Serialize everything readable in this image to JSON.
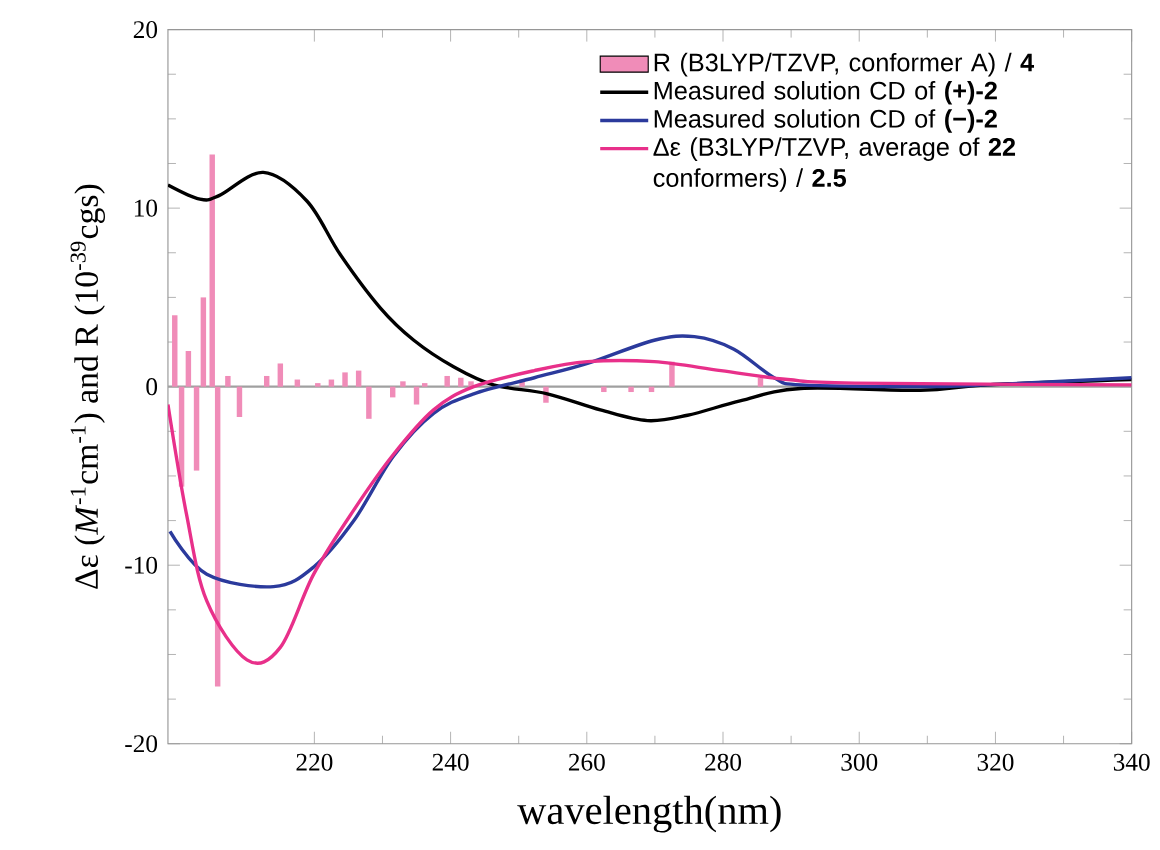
{
  "chart_data": {
    "type": "line",
    "xlabel": "wavelength(nm)",
    "ylabel": "Δε (*M*$^{-1}$cm$^{-1}$) and R (10$^{-39}$cgs)",
    "xlim": [
      198.5,
      340
    ],
    "xticks": [
      220,
      240,
      260,
      280,
      300,
      320,
      340
    ],
    "ylim": [
      -20,
      20
    ],
    "yticks": [
      -20,
      -10,
      0,
      10,
      20
    ],
    "legend": "top right",
    "grid": false,
    "ref_lines": [
      {
        "axis": "y",
        "value": 0,
        "color": "#a0a0a0"
      }
    ],
    "series": [
      {
        "name": "Measured solution CD of **(+)-2**",
        "color": "#000000",
        "x": [
          198.5,
          203.2,
          206,
          212.5,
          218.9,
          223.8,
          229.7,
          234.6,
          240.5,
          246.3,
          254.2,
          262,
          268.9,
          274.8,
          282.5,
          291.4,
          309,
          318.8,
          340
        ],
        "values": [
          11.3,
          10.5,
          10.7,
          12.0,
          10.4,
          7.4,
          4.4,
          2.6,
          1.1,
          0.1,
          -0.4,
          -1.3,
          -1.9,
          -1.6,
          -0.8,
          -0.1,
          -0.2,
          0.1,
          0.4
        ]
      },
      {
        "name": "Measured solution CD of **(−)-2**",
        "color": "#2b3a9c",
        "x": [
          198.8,
          204.2,
          214,
          219.9,
          225.8,
          231.6,
          237.5,
          243.4,
          252.3,
          260.1,
          269.9,
          275.8,
          281.6,
          287.5,
          291.5,
          308.5,
          318.5,
          340
        ],
        "values": [
          -8.1,
          -10.5,
          -11.2,
          -10.1,
          -7.5,
          -3.9,
          -1.5,
          -0.4,
          0.5,
          1.3,
          2.6,
          2.8,
          2.1,
          0.5,
          0.1,
          0.0,
          0.1,
          0.5
        ]
      },
      {
        "name": "Δε  (B3LYP/TZVP, average of **22** conformers) / **2.5**",
        "color": "#e8308a",
        "x": [
          198.5,
          201.2,
          204.2,
          210.1,
          215,
          219.9,
          225.8,
          231.6,
          237.5,
          243.4,
          252.3,
          260.1,
          269.9,
          279.7,
          289.5,
          299.3,
          340
        ],
        "values": [
          -1.0,
          -7.1,
          -12.0,
          -15.3,
          -14.6,
          -10.5,
          -6.9,
          -3.8,
          -1.3,
          0.0,
          0.9,
          1.4,
          1.4,
          0.9,
          0.4,
          0.2,
          0.1
        ]
      },
      {
        "name": "R  (B3LYP/TZVP, conformer A) / **4**",
        "type": "bar",
        "color": "#f08cb8",
        "x": [
          199.5,
          200.5,
          201.5,
          202.7,
          203.7,
          205.0,
          205.8,
          207.3,
          209.0,
          213.0,
          215.0,
          217.5,
          220.5,
          222.5,
          224.5,
          226.5,
          228.0,
          231.5,
          233.0,
          235.0,
          236.2,
          239.5,
          241.5,
          243.0,
          244.5,
          250.5,
          254.0,
          262.5,
          266.5,
          269.5,
          272.5,
          285.5
        ],
        "values": [
          4.0,
          -5.6,
          2.0,
          -4.7,
          5.0,
          13.0,
          -16.8,
          0.6,
          -1.7,
          0.6,
          1.3,
          0.4,
          0.2,
          0.4,
          0.8,
          0.9,
          -1.8,
          -0.6,
          0.3,
          -1.0,
          0.2,
          0.6,
          0.5,
          0.3,
          null,
          0.4,
          -0.9,
          -0.3,
          -0.3,
          -0.3,
          1.4,
          0.5
        ]
      }
    ]
  }
}
